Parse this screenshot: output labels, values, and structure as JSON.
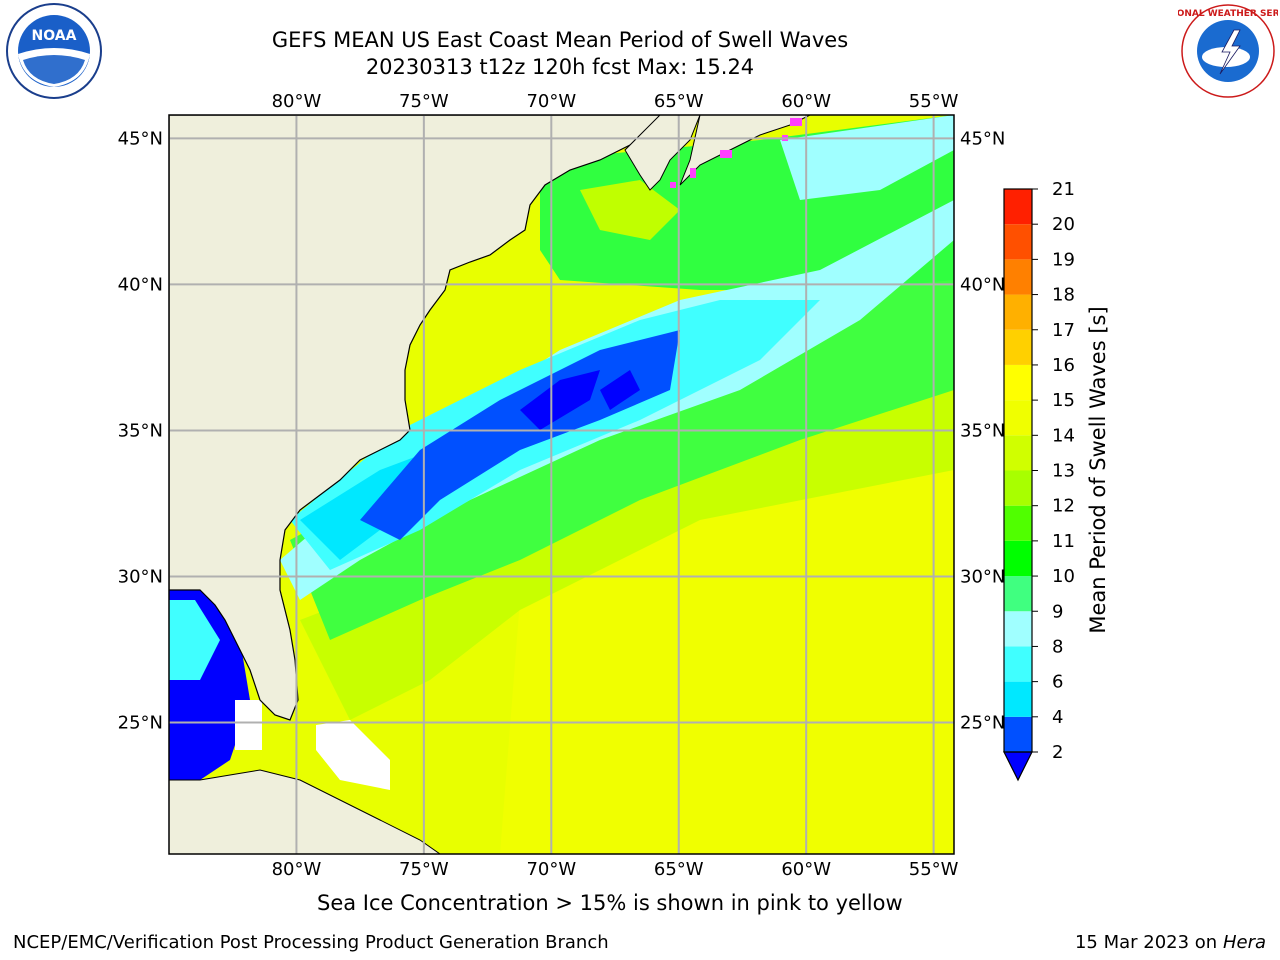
{
  "title": {
    "line1": "GEFS MEAN US East Coast Mean Period of Swell Waves",
    "line2": "20230313 t12z 120h fcst   Max: 15.24"
  },
  "map": {
    "lon_labels": [
      "80°W",
      "75°W",
      "70°W",
      "65°W",
      "60°W",
      "55°W"
    ],
    "lat_labels": [
      "45°N",
      "40°N",
      "35°N",
      "30°N",
      "25°N"
    ],
    "lon_values": [
      -80,
      -75,
      -70,
      -65,
      -60,
      -55
    ],
    "lat_values": [
      45,
      40,
      35,
      30,
      25
    ],
    "extent": {
      "lon_min": -85,
      "lon_max": -54.2,
      "lat_min": 20.5,
      "lat_max": 45.8
    }
  },
  "colorbar": {
    "label": "Mean Period of Swell Waves [s]",
    "ticks": [
      "2",
      "4",
      "6",
      "8",
      "9",
      "10",
      "11",
      "12",
      "13",
      "14",
      "15",
      "16",
      "17",
      "18",
      "19",
      "20",
      "21"
    ],
    "colors": [
      "#0050ff",
      "#00e8ff",
      "#40ffff",
      "#a0ffff",
      "#40ff80",
      "#00ff00",
      "#50ff00",
      "#a8ff00",
      "#d0ff00",
      "#f0ff00",
      "#ffff00",
      "#ffd000",
      "#ffb000",
      "#ff8000",
      "#ff5000",
      "#ff2000"
    ],
    "under_color": "#0000ff"
  },
  "note": "Sea Ice Concentration > 15% is shown in pink to yellow",
  "footer": {
    "left": "NCEP/EMC/Verification Post Processing Product Generation Branch",
    "date": "15 Mar 2023 on",
    "host": "Hera"
  },
  "logos": {
    "noaa_text": "NOAA",
    "nws_text": "NATIONAL WEATHER SERVICE"
  },
  "colors": {
    "land": "#efefdc",
    "gridline": "#b0b0b0"
  }
}
